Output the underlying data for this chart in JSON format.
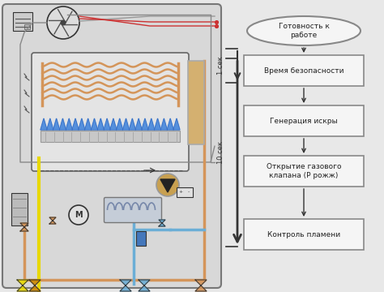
{
  "bg_color": "#e8e8e8",
  "left_panel_bg": "#dcdcdc",
  "right_panel_bg": "#e8e8e8",
  "box_bg": "#f2f2f2",
  "box_border": "#666666",
  "text_color": "#222222",
  "flow_steps": [
    "Готовность к\nработе",
    "Время безопасности",
    "Генерация искры",
    "Открытие газового\nклапана (Р рожж)",
    "Контроль пламени"
  ],
  "time_labels": [
    "1 сек",
    "10 сек"
  ],
  "orange_color": "#d4955a",
  "yellow_color": "#e8d800",
  "blue_color": "#4a7fc1",
  "light_blue_color": "#6baed6",
  "red_color": "#cc3333",
  "dark_color": "#333333",
  "gray_color": "#888888",
  "coil_color": "#d4955a",
  "flame_color": "#4a7fc1",
  "wire_gray": "#999999"
}
